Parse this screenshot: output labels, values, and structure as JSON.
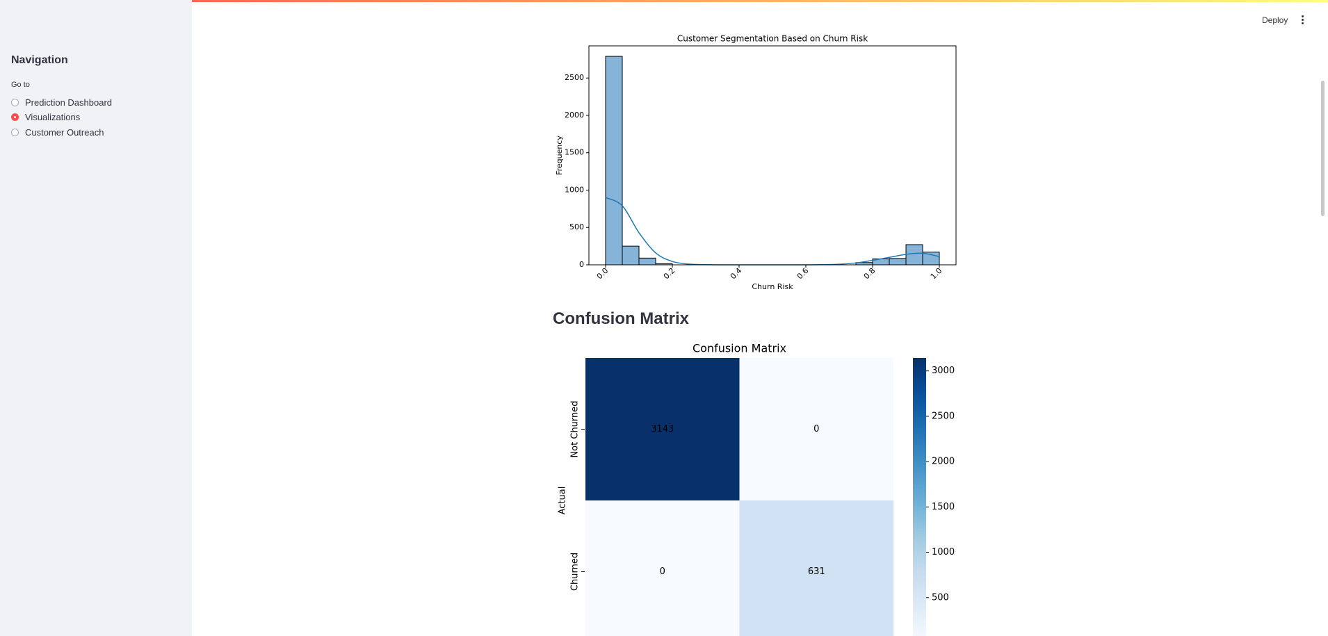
{
  "header": {
    "deploy": "Deploy"
  },
  "sidebar": {
    "title": "Navigation",
    "radio_label": "Go to",
    "options": [
      "Prediction Dashboard",
      "Visualizations",
      "Customer Outreach"
    ],
    "selected": 1
  },
  "section_heading": "Confusion Matrix",
  "chart_data": [
    {
      "type": "histogram",
      "title": "Customer Segmentation Based on Churn Risk",
      "x_label": "Churn Risk",
      "y_label": "Frequency",
      "bins": [
        0,
        0.05,
        0.1,
        0.15,
        0.2,
        0.25,
        0.3,
        0.35,
        0.4,
        0.45,
        0.5,
        0.55,
        0.6,
        0.65,
        0.7,
        0.75,
        0.8,
        0.85,
        0.9,
        0.95,
        1.0
      ],
      "values": [
        2790,
        250,
        90,
        15,
        0,
        0,
        0,
        0,
        0,
        0,
        0,
        0,
        0,
        0,
        0,
        30,
        80,
        85,
        270,
        170
      ],
      "color": "#86b4d8",
      "edge_color": "#000000",
      "kde": {
        "x": [
          0,
          0.05,
          0.1,
          0.15,
          0.2,
          0.25,
          0.3,
          0.35,
          0.4,
          0.45,
          0.5,
          0.55,
          0.6,
          0.65,
          0.7,
          0.75,
          0.8,
          0.85,
          0.9,
          0.95,
          1.0
        ],
        "values": [
          900,
          790,
          430,
          160,
          45,
          10,
          2,
          0,
          0,
          0,
          0,
          0,
          0,
          2,
          8,
          25,
          60,
          100,
          140,
          155,
          110
        ],
        "color": "#1f77b4"
      },
      "xlim": [
        -0.05,
        1.05
      ],
      "ylim": [
        0,
        2930
      ],
      "xticks": [
        {
          "value": 0,
          "label": "0.0"
        },
        {
          "value": 0.2,
          "label": "0.2"
        },
        {
          "value": 0.4,
          "label": "0.4"
        },
        {
          "value": 0.6,
          "label": "0.6"
        },
        {
          "value": 0.8,
          "label": "0.8"
        },
        {
          "value": 1,
          "label": "1.0"
        }
      ],
      "yticks": [
        0,
        500,
        1000,
        1500,
        2000,
        2500
      ]
    },
    {
      "type": "heatmap",
      "title": "Confusion Matrix",
      "y_label": "Actual",
      "y_categories": [
        "Not Churned",
        "Churned"
      ],
      "values": [
        [
          3143,
          0
        ],
        [
          0,
          631
        ]
      ],
      "colormap": "Blues",
      "clim": [
        0,
        3143
      ],
      "colorbar_ticks": [
        500,
        1000,
        1500,
        2000,
        2500,
        3000
      ]
    }
  ]
}
